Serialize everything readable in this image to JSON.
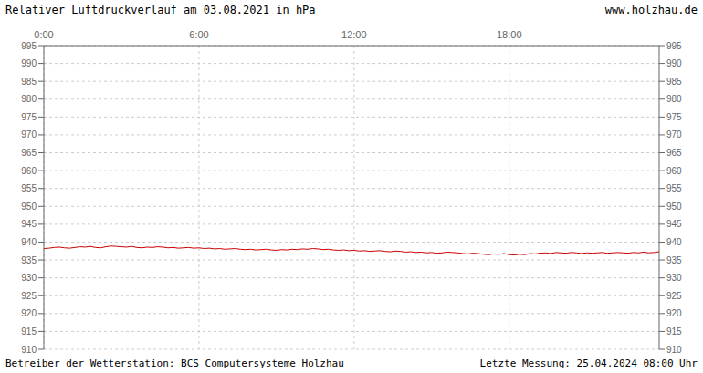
{
  "chart_data": {
    "type": "line",
    "title": "Relativer Luftdruckverlauf am 03.08.2021 in hPa",
    "annotations": [
      "www.holzhau.de",
      "Betreiber der Wetterstation: BCS Computersysteme Holzhau",
      "Letzte Messung: 25.04.2024 08:00 Uhr"
    ],
    "categories": [
      "0:00",
      null,
      null,
      null,
      null,
      null,
      null,
      null,
      null,
      null,
      null,
      null,
      null,
      null,
      null,
      null,
      null,
      null,
      null,
      null,
      null,
      null,
      null,
      null,
      null,
      null,
      null,
      null,
      null,
      null,
      "6:00",
      null,
      null,
      null,
      null,
      null,
      null,
      null,
      null,
      null,
      null,
      null,
      null,
      null,
      null,
      null,
      null,
      null,
      null,
      null,
      null,
      null,
      null,
      null,
      null,
      null,
      null,
      null,
      null,
      null,
      "12:00",
      null,
      null,
      null,
      null,
      null,
      null,
      null,
      null,
      null,
      null,
      null,
      null,
      null,
      null,
      null,
      null,
      null,
      null,
      null,
      null,
      null,
      null,
      null,
      null,
      null,
      null,
      null,
      null,
      null,
      "18:00",
      null,
      null,
      null,
      null,
      null,
      null,
      null,
      null,
      null,
      null,
      null,
      null,
      null,
      null,
      null,
      null,
      null,
      null,
      null,
      null,
      null,
      null,
      null,
      null,
      null,
      null,
      null,
      null,
      null
    ],
    "values": [
      938.2,
      938.3,
      938.5,
      938.6,
      938.4,
      938.3,
      938.5,
      938.7,
      938.6,
      938.8,
      938.5,
      938.4,
      938.7,
      938.9,
      938.8,
      938.7,
      938.6,
      938.8,
      938.5,
      938.4,
      938.6,
      938.5,
      938.7,
      938.6,
      938.4,
      938.5,
      938.3,
      938.4,
      938.5,
      938.3,
      938.4,
      938.2,
      938.3,
      938.1,
      938.2,
      938.0,
      938.1,
      938.2,
      938.0,
      937.9,
      938.0,
      937.8,
      937.9,
      938.0,
      937.8,
      937.7,
      937.9,
      937.8,
      938.0,
      937.9,
      938.1,
      938.0,
      938.2,
      938.1,
      937.9,
      938.0,
      937.8,
      937.7,
      937.8,
      937.6,
      937.7,
      937.5,
      937.6,
      937.4,
      937.5,
      937.6,
      937.4,
      937.3,
      937.5,
      937.4,
      937.2,
      937.3,
      937.1,
      937.2,
      937.0,
      937.1,
      936.9,
      937.0,
      937.2,
      937.1,
      937.0,
      936.8,
      936.7,
      936.9,
      936.8,
      936.6,
      936.5,
      936.7,
      936.6,
      936.8,
      936.5,
      936.4,
      936.6,
      936.5,
      936.8,
      936.7,
      936.9,
      937.0,
      936.8,
      937.1,
      937.0,
      936.9,
      937.1,
      937.0,
      936.8,
      937.0,
      936.9,
      937.0,
      937.1,
      936.9,
      937.0,
      937.1,
      937.0,
      936.9,
      937.1,
      937.0,
      937.2,
      937.0,
      937.1,
      937.3
    ],
    "color": "#cc0000",
    "ylim": [
      910,
      995
    ],
    "yticks": [
      910,
      915,
      920,
      925,
      930,
      935,
      940,
      945,
      950,
      955,
      960,
      965,
      970,
      975,
      980,
      985,
      990,
      995
    ],
    "grid": true
  }
}
